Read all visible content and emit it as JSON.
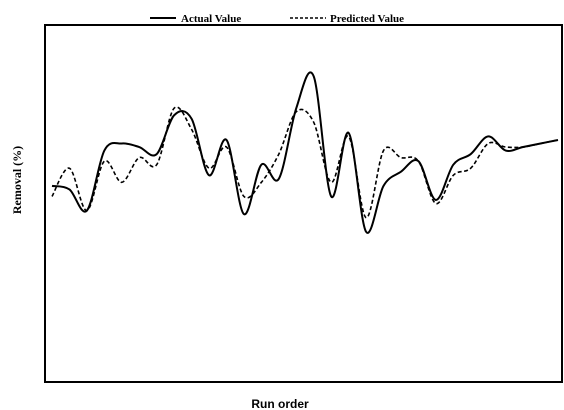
{
  "chart_data": {
    "type": "line",
    "title": "",
    "xlabel": "Run order",
    "ylabel": "Removal (%)",
    "ylim": [
      0,
      100
    ],
    "grid": false,
    "legend": "top-center",
    "x": [
      1,
      2,
      3,
      4,
      5,
      6,
      7,
      8,
      9,
      10,
      11,
      12,
      13,
      14,
      15,
      16,
      17,
      18,
      19,
      20,
      21,
      22,
      23,
      24,
      25,
      26,
      27,
      28,
      29,
      30
    ],
    "series": [
      {
        "name": "Actual Value",
        "style": "solid",
        "color": "#000000",
        "values": [
          55,
          54,
          48,
          65,
          67,
          66,
          64,
          75,
          74,
          58,
          68,
          47,
          61,
          57,
          77,
          86,
          52,
          70,
          42,
          55,
          59,
          62,
          51,
          61,
          64,
          69,
          65,
          66,
          67,
          68
        ]
      },
      {
        "name": "Predicted Value",
        "style": "dashed",
        "color": "#000000",
        "values": [
          52,
          60,
          48,
          62,
          56,
          63,
          61,
          77,
          71,
          60,
          66,
          52,
          56,
          64,
          76,
          73,
          56,
          69,
          46,
          65,
          63,
          62,
          50,
          58,
          60,
          67,
          66,
          66,
          67,
          68
        ]
      }
    ]
  }
}
